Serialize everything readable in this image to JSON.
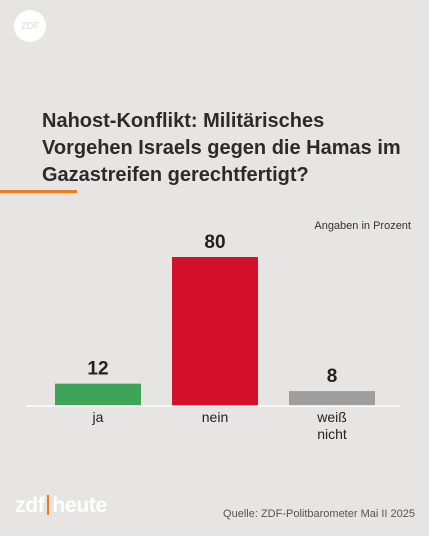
{
  "brand": {
    "top_logo_text": "ZDF",
    "footer_logo_left": "zdf",
    "footer_logo_right": "heute",
    "accent_color": "#f07d19"
  },
  "chart_data": {
    "type": "bar",
    "title": "Nahost-Konflikt: Militärisches Vorgehen Israels gegen die Hamas im Gazastreifen gerechtfertigt?",
    "units_note": "Angaben in Prozent",
    "categories": [
      "ja",
      "nein",
      "weiß nicht"
    ],
    "category_lines": [
      [
        "ja"
      ],
      [
        "nein"
      ],
      [
        "weiß",
        "nicht"
      ]
    ],
    "values": [
      12,
      80,
      8
    ],
    "colors": [
      "#3da45a",
      "#d4102a",
      "#9e9e9e"
    ],
    "ylim": [
      0,
      80
    ],
    "grid": false
  },
  "source": "Quelle: ZDF-Politbarometer Mai II 2025"
}
